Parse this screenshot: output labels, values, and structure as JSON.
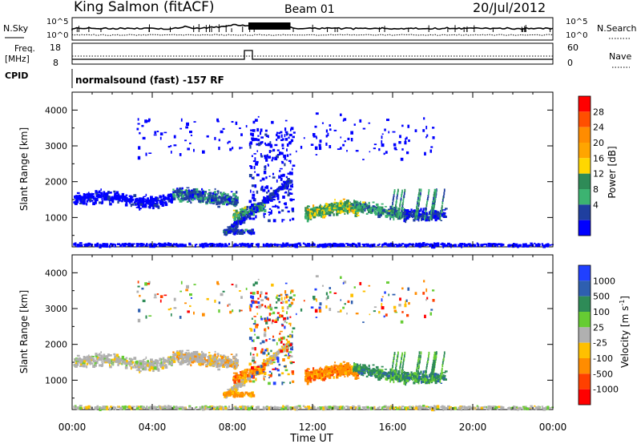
{
  "header": {
    "station": "King Salmon (fitACF)",
    "beam": "Beam 01",
    "date": "20/Jul/2012"
  },
  "top_panels": {
    "nsky_label": "N.Sky",
    "nsearch_label": "N.Search",
    "count_ticks": [
      "10^5",
      "10^0"
    ],
    "freq_label_1": "Freq.",
    "freq_label_2": "[MHz]",
    "freq_ticks": [
      "18",
      "8"
    ],
    "nave_ticks": [
      "60",
      "0"
    ],
    "nave_label": "Nave",
    "cpid_label": "CPID",
    "cpid_text": "normalsound (fast) -157 RF"
  },
  "panels": {
    "ylabel": "Slant Range [km]",
    "y_ticks": [
      "4000",
      "3000",
      "2000",
      "1000"
    ],
    "x_ticks": [
      "00:00",
      "04:00",
      "08:00",
      "12:00",
      "16:00",
      "20:00",
      "00:00"
    ],
    "xlabel": "Time UT"
  },
  "power_scale": {
    "label": "Power [dB]",
    "ticks": [
      "28",
      "24",
      "20",
      "16",
      "12",
      "8",
      "4"
    ],
    "colors": [
      "#ff0000",
      "#ff4f00",
      "#ff8c00",
      "#ffa500",
      "#ffd700",
      "#2e8b57",
      "#3cb371",
      "#1f3f9f",
      "#0000ff"
    ]
  },
  "velocity_scale": {
    "label": "Velocity [m s",
    "label_exp": "-1",
    "label_end": "]",
    "ticks": [
      "1000",
      "500",
      "100",
      "25",
      "-25",
      "-100",
      "-500",
      "-1000"
    ],
    "colors": [
      "#2040ff",
      "#2e5fb0",
      "#2e8b57",
      "#66cc33",
      "#b0b0b0",
      "#ffc000",
      "#ff8c00",
      "#ff4000",
      "#ff0000"
    ]
  },
  "chart_data": [
    {
      "type": "line",
      "title": "N.Sky / N.Search",
      "x": [
        "00:00",
        "04:00",
        "08:00",
        "12:00",
        "16:00",
        "20:00",
        "00:00"
      ],
      "ylim": [
        1,
        100000
      ],
      "log_scale": true
    },
    {
      "type": "line",
      "title": "Freq. [MHz] / Nave",
      "x": [
        "00:00",
        "04:00",
        "08:00",
        "12:00",
        "16:00",
        "20:00",
        "00:00"
      ],
      "series": [
        {
          "name": "Freq. [MHz]",
          "values": [
            10,
            10,
            10,
            10,
            10,
            10,
            10
          ]
        },
        {
          "name": "Nave",
          "values": [
            20,
            20,
            20,
            20,
            20,
            20,
            20
          ]
        }
      ]
    },
    {
      "type": "heatmap",
      "ylabel": "Slant Range [km]",
      "xlabel": "Time UT",
      "ylim": [
        180,
        4500
      ],
      "colorbar": "Power [dB]",
      "clim": [
        0,
        30
      ]
    },
    {
      "type": "heatmap",
      "ylabel": "Slant Range [km]",
      "xlabel": "Time UT",
      "ylim": [
        180,
        4500
      ],
      "colorbar": "Velocity [m s-1]",
      "clim": [
        -1000,
        1000
      ]
    }
  ]
}
